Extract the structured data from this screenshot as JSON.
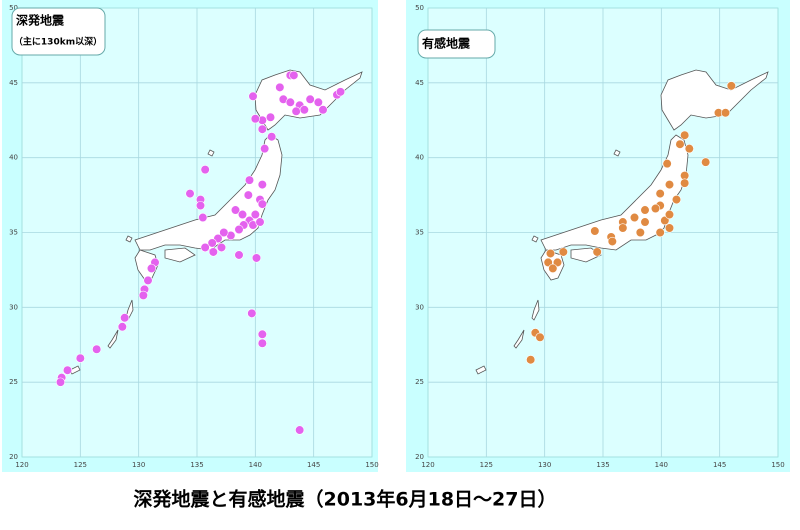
{
  "title": "深発地震と有感地震（2013年6月18日～27日）",
  "chart_data": [
    {
      "type": "scatter",
      "title": "深発地震",
      "subtitle": "（主に130km以深）",
      "color": "#e462ee",
      "xlim": [
        120,
        150
      ],
      "ylim": [
        20,
        50
      ],
      "xticks": [
        120,
        125,
        130,
        135,
        140,
        145,
        150
      ],
      "yticks": [
        20,
        25,
        30,
        35,
        40,
        45,
        50
      ],
      "grid": true,
      "x": [
        143.0,
        143.3,
        139.8,
        142.1,
        142.4,
        143.0,
        143.8,
        144.7,
        145.4,
        145.8,
        147.0,
        147.3,
        143.5,
        144.2,
        140.6,
        141.3,
        140.6,
        141.4,
        140.8,
        140.0,
        135.7,
        140.6,
        139.5,
        139.4,
        140.4,
        140.6,
        134.4,
        135.3,
        135.5,
        135.3,
        138.3,
        138.9,
        139.5,
        140.0,
        139.8,
        140.4,
        139.0,
        138.6,
        137.9,
        137.3,
        136.8,
        136.3,
        135.7,
        136.4,
        138.6,
        140.1,
        137.1,
        131.4,
        131.1,
        130.8,
        130.5,
        130.4,
        139.7,
        140.6,
        140.6,
        128.8,
        128.6,
        126.4,
        125.0,
        123.9,
        123.4,
        123.3,
        143.8
      ],
      "y": [
        45.5,
        45.5,
        44.1,
        44.7,
        43.9,
        43.7,
        43.5,
        43.9,
        43.7,
        43.2,
        44.2,
        44.4,
        43.1,
        43.2,
        42.5,
        42.7,
        41.9,
        41.4,
        40.6,
        42.6,
        39.2,
        38.2,
        38.5,
        37.5,
        37.2,
        36.9,
        37.6,
        37.2,
        36.0,
        36.8,
        36.5,
        36.2,
        35.8,
        36.2,
        35.5,
        35.7,
        35.5,
        35.2,
        34.8,
        35.0,
        34.6,
        34.3,
        34.0,
        33.7,
        33.5,
        33.3,
        34.0,
        33.0,
        32.6,
        31.8,
        31.2,
        30.8,
        29.6,
        28.2,
        27.6,
        29.3,
        28.7,
        27.2,
        26.6,
        25.8,
        25.3,
        25.0,
        21.8
      ]
    },
    {
      "type": "scatter",
      "title": "有感地震",
      "color": "#e08a42",
      "xlim": [
        120,
        150
      ],
      "ylim": [
        20,
        50
      ],
      "xticks": [
        120,
        125,
        130,
        135,
        140,
        145,
        150
      ],
      "yticks": [
        20,
        25,
        30,
        35,
        40,
        45,
        50
      ],
      "grid": true,
      "x": [
        146.0,
        144.9,
        145.5,
        142.0,
        141.6,
        142.4,
        140.5,
        143.8,
        142.0,
        142.0,
        140.7,
        139.9,
        141.3,
        139.9,
        139.5,
        138.6,
        137.7,
        136.7,
        136.7,
        138.6,
        140.3,
        140.7,
        140.7,
        139.9,
        138.2,
        135.7,
        135.8,
        134.5,
        134.3,
        131.6,
        131.1,
        130.3,
        130.7,
        130.5,
        129.2,
        129.6,
        128.8
      ],
      "y": [
        44.8,
        43.0,
        43.0,
        41.5,
        40.9,
        40.6,
        39.6,
        39.7,
        38.8,
        38.3,
        38.2,
        37.6,
        37.2,
        36.8,
        36.6,
        36.5,
        36.0,
        35.7,
        35.3,
        35.7,
        35.8,
        36.2,
        35.3,
        35.0,
        35.0,
        34.7,
        34.4,
        33.7,
        35.1,
        33.7,
        33.0,
        33.0,
        32.6,
        33.6,
        28.3,
        28.0,
        26.5
      ]
    }
  ]
}
